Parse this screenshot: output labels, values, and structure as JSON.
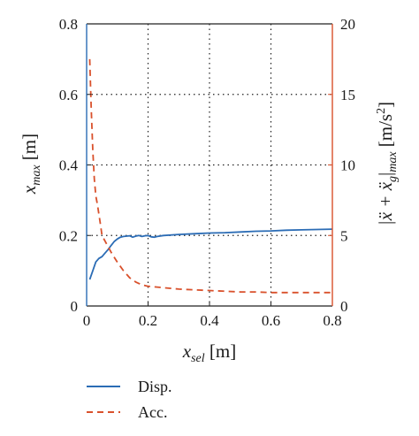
{
  "chart_data": {
    "type": "line",
    "xlabel": {
      "var": "x",
      "sub": "sel",
      "unit": " [m]"
    },
    "ylabel_left": {
      "var": "x",
      "sub": "max",
      "unit": " [m]"
    },
    "ylabel_right": {
      "text": "|ẍ + ẍ",
      "sub_g": "g",
      "close": "|",
      "sub_max": "max",
      "unit": " [m/s",
      "unit_sup": "2",
      "unit_close": "]"
    },
    "xlim": [
      0,
      0.8
    ],
    "ylim_left": [
      0,
      0.8
    ],
    "ylim_right": [
      0,
      20
    ],
    "xticks": [
      "0",
      "0.2",
      "0.4",
      "0.6",
      "0.8"
    ],
    "yticks_left": [
      "0",
      "0.2",
      "0.4",
      "0.6",
      "0.8"
    ],
    "yticks_right": [
      "0",
      "5",
      "10",
      "15",
      "20"
    ],
    "grid": true,
    "legend_position": "bottom-left, below plot",
    "series": [
      {
        "name": "Disp.",
        "axis": "left",
        "color": "#2b6cb5",
        "style": "solid",
        "x": [
          0.01,
          0.02,
          0.03,
          0.04,
          0.05,
          0.06,
          0.07,
          0.08,
          0.09,
          0.1,
          0.11,
          0.12,
          0.13,
          0.14,
          0.15,
          0.16,
          0.17,
          0.18,
          0.19,
          0.2,
          0.21,
          0.22,
          0.23,
          0.25,
          0.3,
          0.35,
          0.4,
          0.45,
          0.5,
          0.55,
          0.6,
          0.65,
          0.7,
          0.75,
          0.8
        ],
        "y": [
          0.075,
          0.1,
          0.125,
          0.135,
          0.14,
          0.15,
          0.16,
          0.172,
          0.183,
          0.19,
          0.195,
          0.197,
          0.198,
          0.199,
          0.195,
          0.198,
          0.2,
          0.197,
          0.199,
          0.2,
          0.196,
          0.195,
          0.197,
          0.2,
          0.203,
          0.205,
          0.207,
          0.208,
          0.21,
          0.212,
          0.213,
          0.215,
          0.216,
          0.217,
          0.218
        ]
      },
      {
        "name": "Acc.",
        "axis": "right",
        "color": "#d9512c",
        "style": "dashed",
        "x": [
          0.01,
          0.015,
          0.02,
          0.025,
          0.03,
          0.035,
          0.04,
          0.045,
          0.05,
          0.06,
          0.07,
          0.08,
          0.1,
          0.12,
          0.14,
          0.16,
          0.18,
          0.2,
          0.25,
          0.3,
          0.35,
          0.4,
          0.45,
          0.5,
          0.55,
          0.6,
          0.65,
          0.7,
          0.75,
          0.8
        ],
        "y": [
          17.5,
          14.0,
          11.0,
          9.0,
          7.8,
          7.2,
          6.5,
          5.8,
          5.0,
          4.6,
          4.2,
          3.8,
          3.1,
          2.5,
          2.0,
          1.7,
          1.5,
          1.4,
          1.3,
          1.2,
          1.15,
          1.1,
          1.05,
          1.0,
          1.0,
          0.95,
          0.95,
          0.95,
          0.95,
          0.95
        ]
      }
    ]
  }
}
